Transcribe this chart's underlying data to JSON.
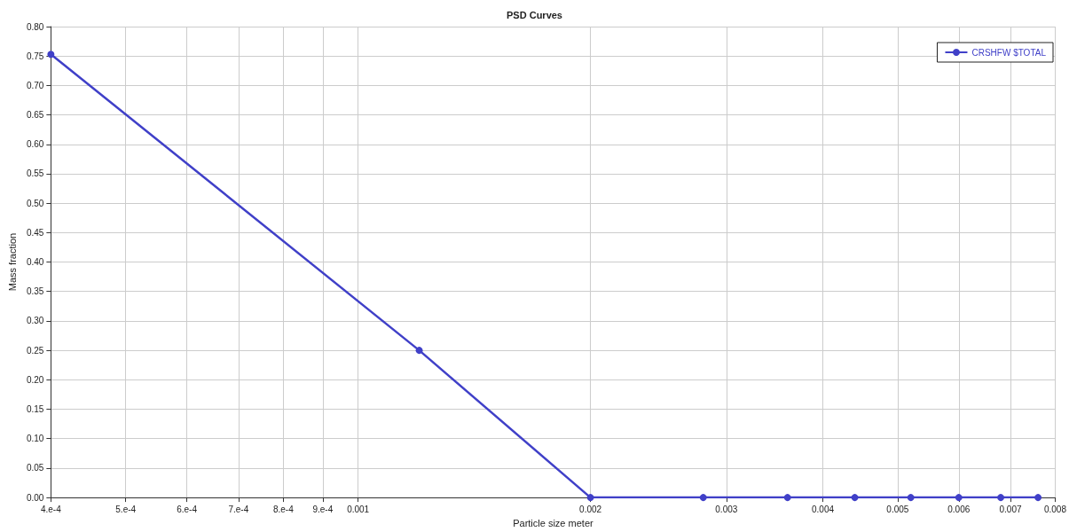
{
  "chart_data": {
    "type": "line",
    "title": "PSD Curves",
    "xlabel": "Particle size meter",
    "ylabel": "Mass fraction",
    "x": [
      0.0004,
      0.0012,
      0.002,
      0.0028,
      0.0036,
      0.0044,
      0.0052,
      0.006,
      0.0068,
      0.0076
    ],
    "series": [
      {
        "name": "CRSHFW $TOTAL",
        "color": "#4040c8",
        "values": [
          0.753,
          0.25,
          0,
          0,
          0,
          0,
          0,
          0,
          0,
          0
        ]
      }
    ],
    "log": "x",
    "xlim": [
      0.0004,
      0.008
    ],
    "xticks": [
      {
        "value": 0.0004,
        "label": "4.e-4"
      },
      {
        "value": 0.0005,
        "label": "5.e-4"
      },
      {
        "value": 0.0006,
        "label": "6.e-4"
      },
      {
        "value": 0.0007,
        "label": "7.e-4"
      },
      {
        "value": 0.0008,
        "label": "8.e-4"
      },
      {
        "value": 0.0009,
        "label": "9.e-4"
      },
      {
        "value": 0.001,
        "label": "0.001"
      },
      {
        "value": 0.002,
        "label": "0.002"
      },
      {
        "value": 0.003,
        "label": "0.003"
      },
      {
        "value": 0.004,
        "label": "0.004"
      },
      {
        "value": 0.005,
        "label": "0.005"
      },
      {
        "value": 0.006,
        "label": "0.006"
      },
      {
        "value": 0.007,
        "label": "0.007"
      },
      {
        "value": 0.008,
        "label": "0.008"
      }
    ],
    "ylim": [
      0,
      0.8
    ],
    "yticks": [
      {
        "value": 0,
        "label": "0.00"
      },
      {
        "value": 0.05,
        "label": "0.05"
      },
      {
        "value": 0.1,
        "label": "0.10"
      },
      {
        "value": 0.15,
        "label": "0.15"
      },
      {
        "value": 0.2,
        "label": "0.20"
      },
      {
        "value": 0.25,
        "label": "0.25"
      },
      {
        "value": 0.3,
        "label": "0.30"
      },
      {
        "value": 0.35,
        "label": "0.35"
      },
      {
        "value": 0.4,
        "label": "0.40"
      },
      {
        "value": 0.45,
        "label": "0.45"
      },
      {
        "value": 0.5,
        "label": "0.50"
      },
      {
        "value": 0.55,
        "label": "0.55"
      },
      {
        "value": 0.6,
        "label": "0.60"
      },
      {
        "value": 0.65,
        "label": "0.65"
      },
      {
        "value": 0.7,
        "label": "0.70"
      },
      {
        "value": 0.75,
        "label": "0.75"
      },
      {
        "value": 0.8,
        "label": "0.80"
      }
    ],
    "grid": true,
    "legend": "top right",
    "marker": "circle",
    "line_style": "solid"
  }
}
